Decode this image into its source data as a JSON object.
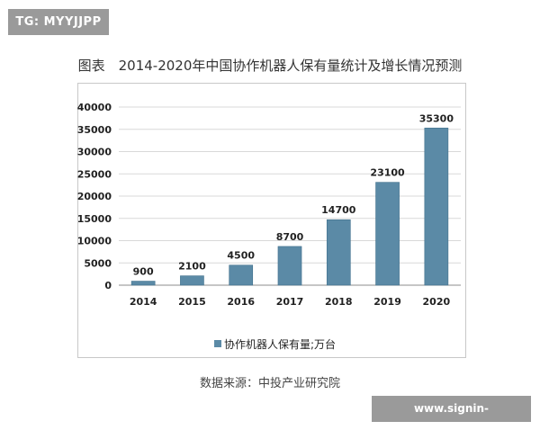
{
  "watermark_top": "TG: MYYJJPP",
  "watermark_bottom": "www.signin-mksports.com",
  "source": "数据来源：中投产业研究院",
  "colors": {
    "bar": "#5b8aa6",
    "bar_edge": "#41708c",
    "grid": "#d9d9d9",
    "axis": "#8c8c8c"
  },
  "chart_data": {
    "type": "bar",
    "title": "图表　2014-2020年中国协作机器人保有量统计及增长情况预测",
    "categories": [
      "2014",
      "2015",
      "2016",
      "2017",
      "2018",
      "2019",
      "2020"
    ],
    "series": [
      {
        "name": "协作机器人保有量;万台",
        "values": [
          900,
          2100,
          4500,
          8700,
          14700,
          23100,
          35300
        ]
      }
    ],
    "data_labels": [
      "900",
      "2100",
      "4500",
      "8700",
      "14700",
      "23100",
      "35300"
    ],
    "ylim": [
      0,
      40000
    ],
    "yticks": [
      0,
      5000,
      10000,
      15000,
      20000,
      25000,
      30000,
      35000,
      40000
    ],
    "grid": true,
    "legend_position": "bottom"
  }
}
